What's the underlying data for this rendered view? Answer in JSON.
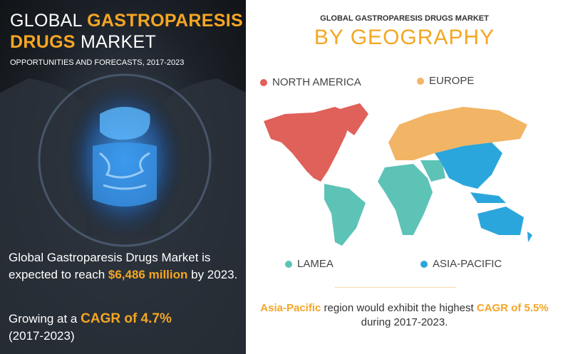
{
  "left_panel": {
    "title": {
      "part1": "GLOBAL",
      "part2": "GASTROPARESIS",
      "part3": "DRUGS",
      "part4": "MARKET"
    },
    "subtitle": "OPPORTUNITIES AND FORECASTS, 2017-2023",
    "stat1": {
      "before": "Global Gastroparesis Drugs Market is expected to reach",
      "highlight": "$6,486 million",
      "after": "by 2023."
    },
    "stat2": {
      "before": "Growing at a",
      "highlight": "CAGR of 4.7%",
      "after": "(2017-2023)"
    }
  },
  "right_panel": {
    "heading": "GLOBAL GASTROPARESIS DRUGS MARKET",
    "subheading": "BY GEOGRAPHY",
    "regions": [
      {
        "name": "NORTH AMERICA",
        "color": "#e0605a"
      },
      {
        "name": "EUROPE",
        "color": "#f2b465"
      },
      {
        "name": "LAMEA",
        "color": "#5ec3b7"
      },
      {
        "name": "ASIA-PACIFIC",
        "color": "#2ba6dc"
      }
    ],
    "footer": {
      "region": "Asia-Pacific",
      "middle": "region would exhibit the highest",
      "cagr": "CAGR of 5.5%",
      "after": "during 2017-2023."
    }
  }
}
